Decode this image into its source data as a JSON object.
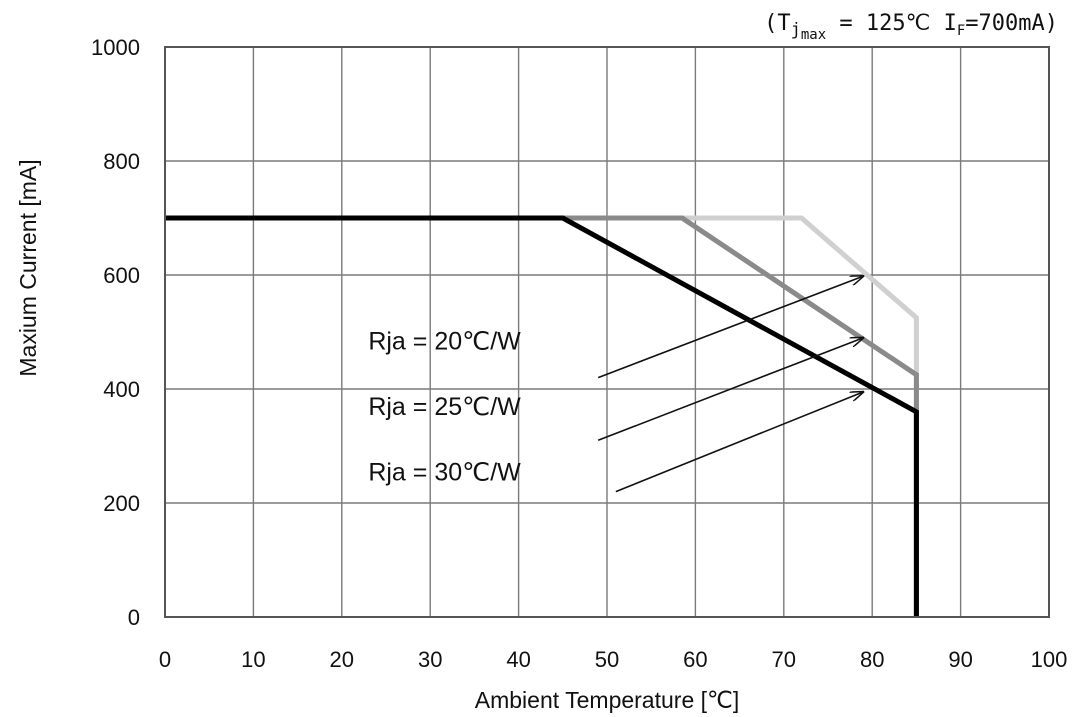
{
  "chart_data": {
    "type": "line",
    "title": "",
    "condition": {
      "open": "(",
      "tj": "T",
      "tj_sub": "j",
      "tj_sub2": "max",
      "eq": " = 125℃ I",
      "if_sub": "F",
      "tail": "=700mA)"
    },
    "xlabel": "Ambient Temperature [℃]",
    "ylabel": "Maxium Current [mA]",
    "xlim": [
      0,
      100
    ],
    "ylim": [
      0,
      1000
    ],
    "xticks": [
      0,
      10,
      20,
      30,
      40,
      50,
      60,
      70,
      80,
      90,
      100
    ],
    "yticks": [
      0,
      200,
      400,
      600,
      800,
      1000
    ],
    "grid": true,
    "series": [
      {
        "name": "Rja = 20℃/W",
        "color": "#d0d0d0",
        "x": [
          0,
          72,
          85,
          85
        ],
        "y": [
          700,
          700,
          525,
          0
        ]
      },
      {
        "name": "Rja = 25℃/W",
        "color": "#8a8a8a",
        "x": [
          0,
          58.5,
          85,
          85
        ],
        "y": [
          700,
          700,
          425,
          0
        ]
      },
      {
        "name": "Rja = 30℃/W",
        "color": "#000000",
        "x": [
          0,
          45,
          85,
          85
        ],
        "y": [
          700,
          700,
          360,
          0
        ]
      }
    ],
    "annotations": [
      {
        "text": "Rja = 20℃/W",
        "pos": [
          23,
          485
        ],
        "arrow_from": [
          49,
          420
        ],
        "arrow_to": [
          79,
          598
        ]
      },
      {
        "text": "Rja = 25℃/W",
        "pos": [
          23,
          370
        ],
        "arrow_from": [
          49,
          310
        ],
        "arrow_to": [
          79,
          490
        ]
      },
      {
        "text": "Rja = 30℃/W",
        "pos": [
          23,
          255
        ],
        "arrow_from": [
          51,
          220
        ],
        "arrow_to": [
          79,
          395
        ]
      }
    ]
  }
}
